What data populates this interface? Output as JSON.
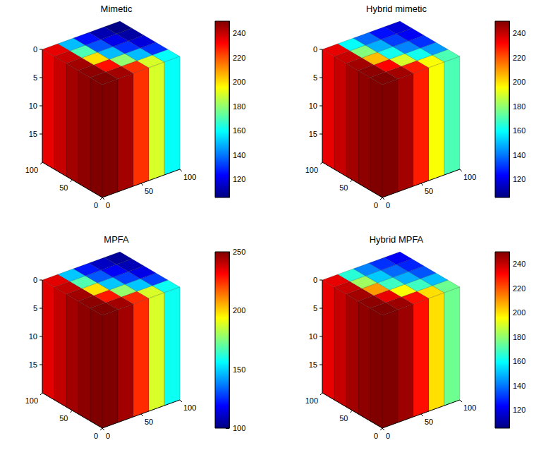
{
  "chart_data": [
    {
      "type": "surface3d",
      "title": "Mimetic",
      "x_edges": [
        0,
        20,
        40,
        60,
        80,
        100
      ],
      "y_edges": [
        0,
        20,
        40,
        60,
        80,
        100
      ],
      "xlim": [
        0,
        100
      ],
      "ylim": [
        0,
        100
      ],
      "zlim": [
        0,
        20
      ],
      "xticks": [
        0,
        50,
        100
      ],
      "yticks": [
        0,
        50,
        100
      ],
      "zticks": [
        0,
        5,
        10,
        15
      ],
      "pressure": [
        [
          250,
          245,
          225,
          190,
          160
        ],
        [
          248,
          230,
          180,
          150,
          130
        ],
        [
          245,
          200,
          150,
          130,
          118
        ],
        [
          240,
          170,
          135,
          120,
          110
        ],
        [
          235,
          150,
          125,
          112,
          106
        ]
      ],
      "clim": [
        105,
        250
      ],
      "cticks": [
        120,
        140,
        160,
        180,
        200,
        220,
        240
      ]
    },
    {
      "type": "surface3d",
      "title": "Hybrid mimetic",
      "x_edges": [
        0,
        20,
        40,
        60,
        80,
        100
      ],
      "y_edges": [
        0,
        20,
        40,
        60,
        80,
        100
      ],
      "xlim": [
        0,
        100
      ],
      "ylim": [
        0,
        100
      ],
      "zlim": [
        0,
        20
      ],
      "xticks": [
        0,
        50,
        100
      ],
      "yticks": [
        0,
        50,
        100
      ],
      "zticks": [
        0,
        5,
        10,
        15
      ],
      "pressure": [
        [
          250,
          245,
          228,
          195,
          170
        ],
        [
          248,
          232,
          190,
          162,
          145
        ],
        [
          245,
          205,
          162,
          142,
          130
        ],
        [
          240,
          178,
          148,
          132,
          122
        ],
        [
          235,
          160,
          138,
          125,
          118
        ]
      ],
      "clim": [
        105,
        250
      ],
      "cticks": [
        120,
        140,
        160,
        180,
        200,
        220,
        240
      ]
    },
    {
      "type": "surface3d",
      "title": "MPFA",
      "x_edges": [
        0,
        20,
        40,
        60,
        80,
        100
      ],
      "y_edges": [
        0,
        20,
        40,
        60,
        80,
        100
      ],
      "xlim": [
        0,
        100
      ],
      "ylim": [
        0,
        100
      ],
      "zlim": [
        0,
        20
      ],
      "xticks": [
        0,
        50,
        100
      ],
      "yticks": [
        0,
        50,
        100
      ],
      "zticks": [
        0,
        5,
        10,
        15
      ],
      "pressure": [
        [
          250,
          245,
          225,
          188,
          158
        ],
        [
          248,
          228,
          178,
          148,
          128
        ],
        [
          245,
          198,
          148,
          128,
          115
        ],
        [
          240,
          168,
          132,
          118,
          108
        ],
        [
          235,
          148,
          122,
          110,
          104
        ]
      ],
      "clim": [
        100,
        250
      ],
      "cticks": [
        100,
        150,
        200,
        250
      ]
    },
    {
      "type": "surface3d",
      "title": "Hybrid MPFA",
      "x_edges": [
        0,
        20,
        40,
        60,
        80,
        100
      ],
      "y_edges": [
        0,
        20,
        40,
        60,
        80,
        100
      ],
      "xlim": [
        0,
        100
      ],
      "ylim": [
        0,
        100
      ],
      "zlim": [
        0,
        20
      ],
      "xticks": [
        0,
        50,
        100
      ],
      "yticks": [
        0,
        50,
        100
      ],
      "zticks": [
        0,
        5,
        10,
        15
      ],
      "pressure": [
        [
          250,
          246,
          230,
          200,
          175
        ],
        [
          248,
          235,
          195,
          168,
          150
        ],
        [
          245,
          210,
          168,
          148,
          135
        ],
        [
          240,
          182,
          152,
          138,
          128
        ],
        [
          235,
          165,
          142,
          130,
          122
        ]
      ],
      "clim": [
        105,
        250
      ],
      "cticks": [
        120,
        140,
        160,
        180,
        200,
        220,
        240
      ]
    }
  ]
}
